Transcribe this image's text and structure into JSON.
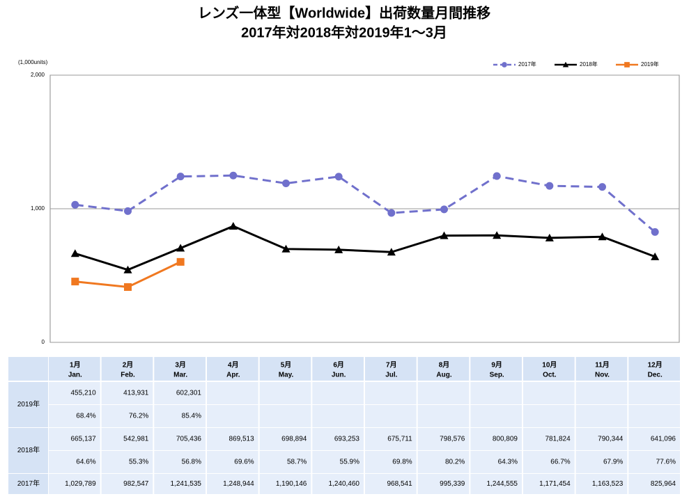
{
  "chart_data": {
    "type": "line",
    "title": "レンズ一体型【Worldwide】出荷数量月間推移",
    "subtitle": "2017年対2018年対2019年1～3月",
    "y_label": "(1,000units)",
    "categories": [
      "1月",
      "2月",
      "3月",
      "4月",
      "5月",
      "6月",
      "7月",
      "8月",
      "9月",
      "10月",
      "11月",
      "12月"
    ],
    "categories_en": [
      "Jan.",
      "Feb.",
      "Mar.",
      "Apr.",
      "May.",
      "Jun.",
      "Jul.",
      "Aug.",
      "Sep.",
      "Oct.",
      "Nov.",
      "Dec."
    ],
    "ylim": [
      0,
      2000
    ],
    "yticks": [
      0,
      {
        "value": 1000,
        "label": "1,000"
      },
      {
        "value": 2000,
        "label": "2,000"
      }
    ],
    "grid": true,
    "legend": "top-right",
    "series": [
      {
        "name": "2019年",
        "color": "#f07820",
        "marker": "square",
        "dash": false,
        "values": [
          455.21,
          413.931,
          602.301,
          null,
          null,
          null,
          null,
          null,
          null,
          null,
          null,
          null
        ],
        "value_labels": [
          "455,210",
          "413,931",
          "602,301",
          null,
          null,
          null,
          null,
          null,
          null,
          null,
          null,
          null
        ],
        "ratio_labels": [
          "68.4%",
          "76.2%",
          "85.4%",
          null,
          null,
          null,
          null,
          null,
          null,
          null,
          null,
          null
        ]
      },
      {
        "name": "2018年",
        "color": "#000000",
        "marker": "triangle",
        "dash": false,
        "values": [
          665.137,
          542.981,
          705.436,
          869.513,
          698.894,
          693.253,
          675.711,
          798.576,
          800.809,
          781.824,
          790.344,
          641.096
        ],
        "value_labels": [
          "665,137",
          "542,981",
          "705,436",
          "869,513",
          "698,894",
          "693,253",
          "675,711",
          "798,576",
          "800,809",
          "781,824",
          "790,344",
          "641,096"
        ],
        "ratio_labels": [
          "64.6%",
          "55.3%",
          "56.8%",
          "69.6%",
          "58.7%",
          "55.9%",
          "69.8%",
          "80.2%",
          "64.3%",
          "66.7%",
          "67.9%",
          "77.6%"
        ]
      },
      {
        "name": "2017年",
        "color": "#7070cc",
        "marker": "circle",
        "dash": true,
        "values": [
          1029.789,
          982.547,
          1241.535,
          1248.944,
          1190.146,
          1240.46,
          968.541,
          995.339,
          1244.555,
          1171.454,
          1163.523,
          825.964
        ],
        "value_labels": [
          "1,029,789",
          "982,547",
          "1,241,535",
          "1,248,944",
          "1,190,146",
          "1,240,460",
          "968,541",
          "995,339",
          "1,244,555",
          "1,171,454",
          "1,163,523",
          "825,964"
        ]
      }
    ]
  }
}
